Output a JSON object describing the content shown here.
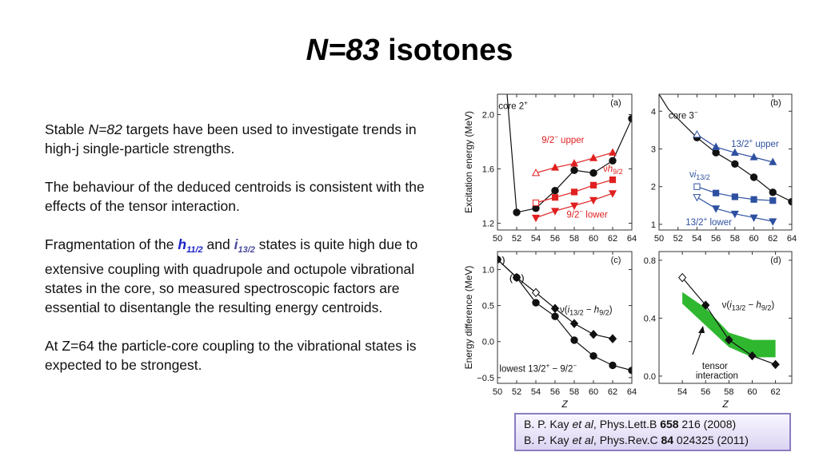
{
  "title": {
    "italic": "N=83",
    "rest": "isotones"
  },
  "body": {
    "p1": {
      "t1": "Stable ",
      "italic": "N=82",
      "t2": " targets have been used to investigate trends in high-j single-particle strengths."
    },
    "p2": "The behaviour of the deduced centroids is consistent with the effects of the tensor interaction.",
    "p3": {
      "t1": "Fragmentation of the ",
      "h": "h",
      "h_sub": "11/2",
      "t2": " and ",
      "i": "i",
      "i_sub": "13/2",
      "t3": " states is quite high due to extensive coupling with quadrupole and octupole vibrational states in the core, so measured spectroscopic factors are essential to disentangle the resulting energy centroids."
    },
    "p4": "At Z=64 the particle-core coupling to the vibrational states is expected to be strongest."
  },
  "references": [
    {
      "a": "B. P. Kay ",
      "etal": "et al",
      "j": ", Phys.Lett.B ",
      "vol": "658",
      "rest": " 216 (2008)"
    },
    {
      "a": "B. P. Kay ",
      "etal": "et al",
      "j": ", Phys.Rev.C ",
      "vol": "84",
      "rest": " 024325 (2011)"
    }
  ],
  "colors": {
    "red": "#e02020",
    "blue": "#2d50a0",
    "green": "#2fb82f",
    "black": "#111111"
  },
  "chart_data": [
    {
      "type": "line",
      "panel": "(a)",
      "ylabel": "Excitation energy (MeV)",
      "xlim": [
        50,
        64
      ],
      "ylim": [
        1.15,
        2.15
      ],
      "xticks": [
        50,
        52,
        54,
        56,
        58,
        60,
        62,
        64
      ],
      "yticks": [
        1.2,
        1.6,
        2.0
      ],
      "ytick_labels": [
        "1.2",
        "1.6",
        "2.0"
      ],
      "series": [
        {
          "key": "core",
          "color": "black",
          "x": [
            51,
            52
          ],
          "y": [
            2.15,
            1.28
          ],
          "marker": "none"
        },
        {
          "key": "h9",
          "color": "black",
          "x": [
            52,
            54,
            56,
            58,
            60,
            62,
            64
          ],
          "y": [
            1.28,
            1.31,
            1.44,
            1.59,
            1.57,
            1.66,
            1.97
          ],
          "marker": "circle"
        },
        {
          "key": "upper",
          "color": "red",
          "x": [
            54,
            56,
            58,
            60,
            62
          ],
          "y": [
            1.57,
            1.61,
            1.64,
            1.68,
            1.72
          ],
          "marker": "triangle-up",
          "open": [
            54
          ]
        },
        {
          "key": "square",
          "color": "red",
          "x": [
            54,
            56,
            58,
            60,
            62
          ],
          "y": [
            1.35,
            1.39,
            1.43,
            1.48,
            1.52
          ],
          "marker": "square",
          "open": [
            54
          ]
        },
        {
          "key": "lower",
          "color": "red",
          "x": [
            54,
            56,
            58,
            60,
            62
          ],
          "y": [
            1.24,
            1.29,
            1.33,
            1.37,
            1.42
          ],
          "marker": "triangle-down"
        }
      ],
      "labels": [
        {
          "key": "core",
          "text": "core 2",
          "sup": "+",
          "x": 50.1,
          "y": 2.04
        },
        {
          "key": "upper",
          "text": "9/2",
          "sup": "−",
          "text2": " upper",
          "x": 54.6,
          "y": 1.79,
          "color": "red"
        },
        {
          "key": "nu",
          "text": "ν",
          "italic": "h",
          "sub": "9/2",
          "x": 61.0,
          "y": 1.58,
          "color": "red"
        },
        {
          "key": "lower",
          "text": "9/2",
          "sup": "−",
          "text2": " lower",
          "x": 57.2,
          "y": 1.24,
          "color": "red"
        }
      ]
    },
    {
      "type": "line",
      "panel": "(b)",
      "xlim": [
        50,
        64
      ],
      "ylim": [
        0.85,
        4.45
      ],
      "xticks": [
        50,
        52,
        54,
        56,
        58,
        60,
        62,
        64
      ],
      "yticks": [
        1,
        2,
        3,
        4
      ],
      "ytick_labels": [
        "1",
        "2",
        "3",
        "4"
      ],
      "series": [
        {
          "key": "core",
          "color": "black",
          "x": [
            50,
            51,
            54
          ],
          "y": [
            4.45,
            4.05,
            3.3
          ],
          "marker": "none"
        },
        {
          "key": "i13",
          "color": "black",
          "x": [
            54,
            56,
            58,
            60,
            62,
            64
          ],
          "y": [
            3.3,
            2.9,
            2.6,
            2.25,
            1.85,
            1.6
          ],
          "marker": "circle"
        },
        {
          "key": "upper",
          "color": "blue",
          "x": [
            54,
            56,
            58,
            60,
            62
          ],
          "y": [
            3.38,
            3.05,
            2.9,
            2.78,
            2.65
          ],
          "marker": "triangle-up",
          "open": [
            54
          ]
        },
        {
          "key": "square",
          "color": "blue",
          "x": [
            54,
            56,
            58,
            60,
            62
          ],
          "y": [
            2.0,
            1.83,
            1.73,
            1.66,
            1.63
          ],
          "marker": "square",
          "open": [
            54
          ]
        },
        {
          "key": "lower",
          "color": "blue",
          "x": [
            54,
            56,
            58,
            60,
            62
          ],
          "y": [
            1.72,
            1.42,
            1.28,
            1.18,
            1.08
          ],
          "marker": "triangle-down",
          "open": [
            54
          ]
        }
      ],
      "labels": [
        {
          "key": "core",
          "text": "core 3",
          "sup": "−",
          "x": 51.0,
          "y": 3.8
        },
        {
          "key": "upper",
          "text": "13/2",
          "sup": "+",
          "text2": " upper",
          "x": 57.6,
          "y": 3.05,
          "color": "blue"
        },
        {
          "key": "nu",
          "text": "ν",
          "italic": "i",
          "sub": "13/2",
          "x": 53.2,
          "y": 2.25,
          "color": "blue"
        },
        {
          "key": "lower",
          "text": "13/2",
          "sup": "+",
          "text2": " lower",
          "x": 52.8,
          "y": 0.98,
          "color": "blue"
        }
      ]
    },
    {
      "type": "line",
      "panel": "(c)",
      "ylabel": "Energy difference (MeV)",
      "xlabel": "Z",
      "xlim": [
        50,
        64
      ],
      "ylim": [
        -0.58,
        1.25
      ],
      "xticks": [
        50,
        52,
        54,
        56,
        58,
        60,
        62,
        64
      ],
      "yticks": [
        -0.5,
        0.0,
        0.5,
        1.0
      ],
      "ytick_labels": [
        "−0.5",
        "0.0",
        "0.5",
        "1.0"
      ],
      "series": [
        {
          "key": "diff",
          "color": "black",
          "x": [
            50,
            52,
            54,
            56,
            58,
            60,
            62
          ],
          "y": [
            1.14,
            0.89,
            0.68,
            0.46,
            0.25,
            0.1,
            0.04
          ],
          "marker": "diamond",
          "open": [
            54
          ],
          "paren": [
            50,
            52
          ]
        },
        {
          "key": "lowest",
          "color": "black",
          "x": [
            50,
            52,
            54,
            56,
            58,
            60,
            62,
            64
          ],
          "y": [
            1.14,
            0.89,
            0.54,
            0.35,
            0.02,
            -0.2,
            -0.33,
            -0.4
          ],
          "marker": "circle",
          "paren": [
            50,
            52
          ]
        }
      ],
      "labels": [
        {
          "key": "nu",
          "text": "ν(",
          "italic": "i",
          "sub": "13/2",
          "text2": " − ",
          "italic2": "h",
          "sub2": "9/2",
          "text3": ")",
          "x": 56.5,
          "y": 0.4
        },
        {
          "key": "lowest",
          "text": "lowest 13/2",
          "sup": "+",
          "text2": " − 9/2",
          "sup2": "−",
          "x": 50.2,
          "y": -0.42
        }
      ]
    },
    {
      "type": "line",
      "panel": "(d)",
      "xlabel": "Z",
      "xlim": [
        52,
        63.4
      ],
      "ylim": [
        -0.05,
        0.86
      ],
      "xticks": [
        54,
        56,
        58,
        60,
        62
      ],
      "yticks": [
        0.0,
        0.4,
        0.8
      ],
      "ytick_labels": [
        "0.0",
        "0.4",
        "0.8"
      ],
      "series": [
        {
          "key": "exp",
          "color": "black",
          "x": [
            54,
            56,
            58,
            60,
            62
          ],
          "y": [
            0.68,
            0.49,
            0.25,
            0.14,
            0.08
          ],
          "marker": "diamond",
          "open": [
            54
          ]
        }
      ],
      "band": {
        "key": "tensor",
        "color": "green",
        "x": [
          54,
          56,
          58,
          60,
          62
        ],
        "upper": [
          0.58,
          0.47,
          0.3,
          0.25,
          0.25
        ],
        "lower": [
          0.5,
          0.35,
          0.2,
          0.13,
          0.13
        ]
      },
      "labels": [
        {
          "key": "nu",
          "text": "ν(",
          "italic": "i",
          "sub": "13/2",
          "text2": " − ",
          "italic2": "h",
          "sub2": "9/2",
          "text3": ")",
          "x": 57.4,
          "y": 0.47
        },
        {
          "key": "tensor",
          "text": "tensor",
          "text2": "interaction",
          "x": 55.7,
          "y": 0.05
        }
      ]
    }
  ]
}
